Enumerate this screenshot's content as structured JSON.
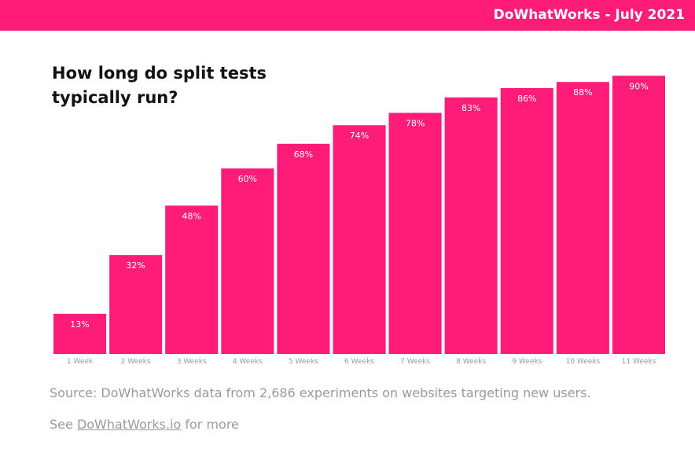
{
  "header": {
    "brand": "DoWhatWorks - July 2021"
  },
  "colors": {
    "accent": "#ff1c79",
    "tick_text": "#999999",
    "footer_text": "#9a9a9a"
  },
  "chart_data": {
    "type": "bar",
    "title": "How long do split tests typically run?",
    "categories": [
      "1 Week",
      "2 Weeks",
      "3 Weeks",
      "4 Weeks",
      "5 Weeks",
      "6 Weeks",
      "7 Weeks",
      "8 Weeks",
      "9 Weeks",
      "10 Weeks",
      "11 Weeks"
    ],
    "values": [
      13,
      32,
      48,
      60,
      68,
      74,
      78,
      83,
      86,
      88,
      90
    ],
    "data_labels": [
      "13%",
      "32%",
      "48%",
      "60%",
      "68%",
      "74%",
      "78%",
      "83%",
      "86%",
      "88%",
      "90%"
    ],
    "unit": "%",
    "ylim": [
      0,
      100
    ],
    "grid": false,
    "legend": "none"
  },
  "footer": {
    "source": "Source: DoWhatWorks data from 2,686 experiments on websites targeting new users.",
    "see_prefix": "See",
    "link_text": "DoWhatWorks.io",
    "see_suffix": "for more"
  }
}
